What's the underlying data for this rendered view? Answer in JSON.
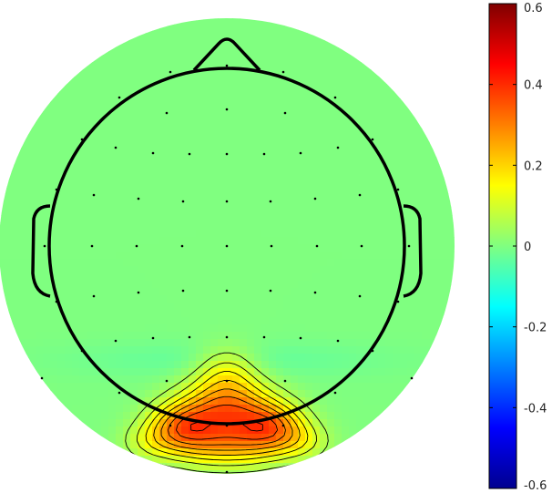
{
  "chart_data": {
    "type": "heatmap",
    "subtype": "eeg-scalp-topography",
    "title": "",
    "colormap": "jet",
    "clim": [
      -0.6,
      0.6
    ],
    "colorbar": {
      "orientation": "vertical",
      "placement": "right",
      "ticks": [
        -0.6,
        -0.4,
        -0.2,
        0,
        0.2,
        0.4,
        0.6
      ],
      "tick_labels": [
        "-0.6",
        "-0.4",
        "-0.2",
        "0",
        "0.2",
        "0.4",
        "0.6"
      ]
    },
    "background_value": 0,
    "peak": {
      "region": "occipital",
      "value": 0.55
    },
    "contour_lines": true,
    "electrode_markers": "dots",
    "head_outline": {
      "nose": true,
      "ears": true
    }
  }
}
